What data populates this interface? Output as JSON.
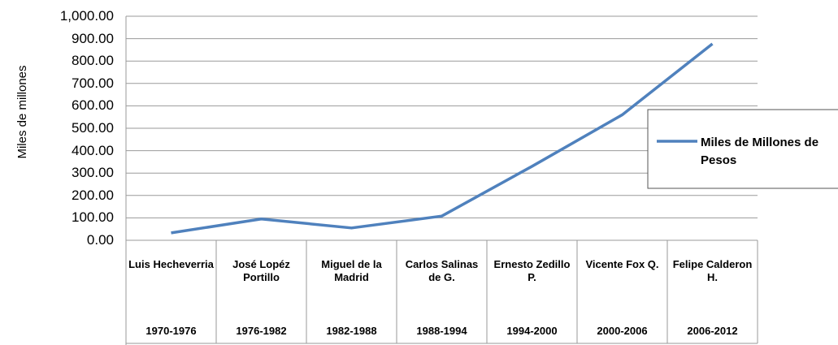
{
  "chart_data": {
    "type": "line",
    "y_label": "Miles de millones",
    "categories": [
      "Luis Hecheverria",
      "José Lopéz Portillo",
      "Miguel de la Madrid",
      "Carlos Salinas de G.",
      "Ernesto Zedillo P.",
      "Vicente Fox Q.",
      "Felipe Calderon H."
    ],
    "periods": [
      "1970-1976",
      "1976-1982",
      "1982-1988",
      "1988-1994",
      "1994-2000",
      "2000-2006",
      "2006-2012"
    ],
    "series": [
      {
        "name": "Miles de Millones de Pesos",
        "color": "#4f81bd",
        "values": [
          33,
          95,
          55,
          108,
          330,
          560,
          877
        ]
      }
    ],
    "ylim": [
      0,
      1000
    ],
    "yticks": [
      {
        "value": 0,
        "label": "0.00"
      },
      {
        "value": 100,
        "label": "100.00"
      },
      {
        "value": 200,
        "label": "200.00"
      },
      {
        "value": 300,
        "label": "300.00"
      },
      {
        "value": 400,
        "label": "400.00"
      },
      {
        "value": 500,
        "label": "500.00"
      },
      {
        "value": 600,
        "label": "600.00"
      },
      {
        "value": 700,
        "label": "700.00"
      },
      {
        "value": 800,
        "label": "800.00"
      },
      {
        "value": 900,
        "label": "900.00"
      },
      {
        "value": 1000,
        "label": "1,000.00"
      }
    ],
    "grid": true,
    "legend": "right"
  }
}
